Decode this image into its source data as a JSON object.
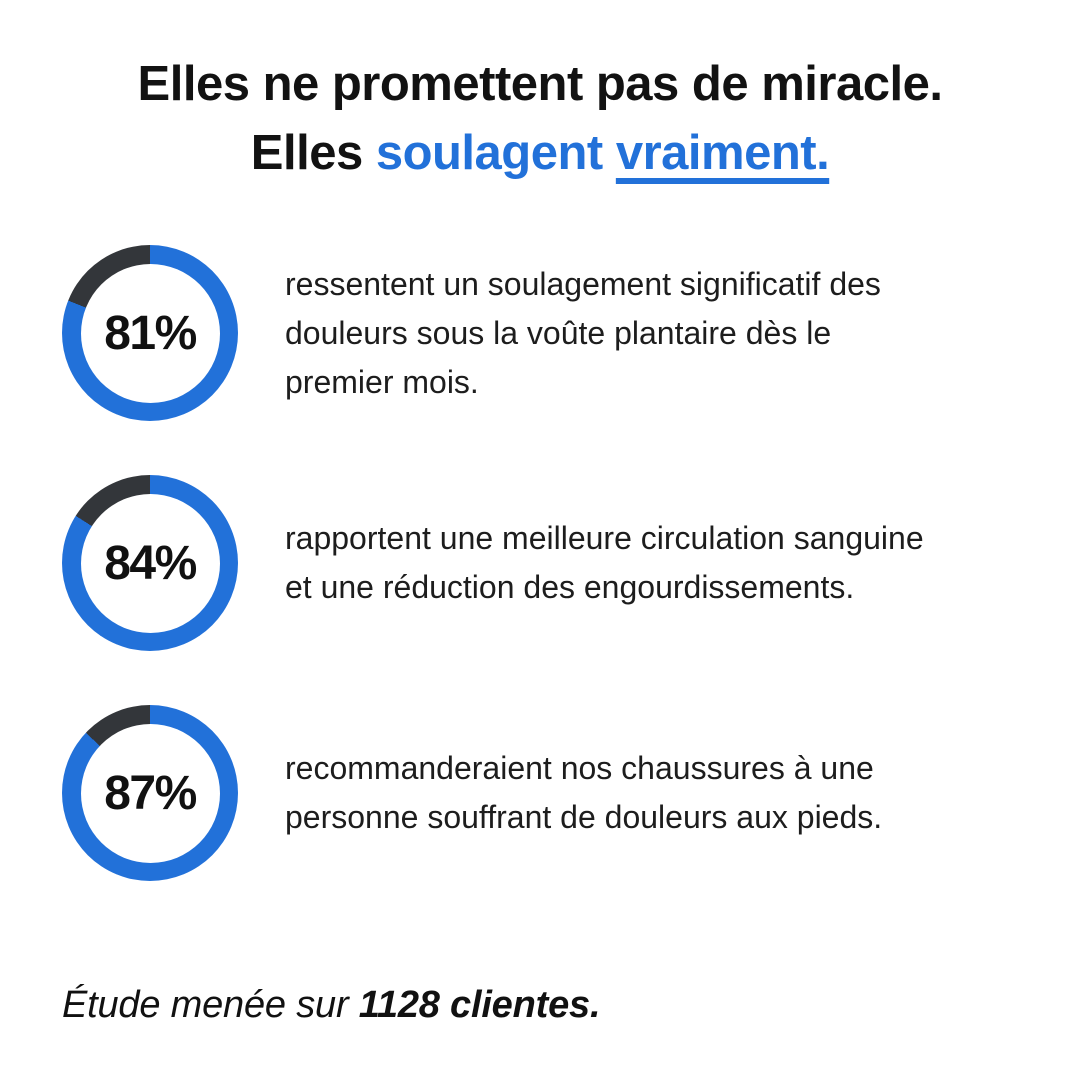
{
  "colors": {
    "accent_blue": "#2271D9",
    "ring_dark": "#33363A",
    "text_black": "#121212"
  },
  "headline": {
    "line1": "Elles ne promettent pas de miracle.",
    "line2_prefix": "Elles ",
    "line2_highlight": "soulagent ",
    "line2_underlined": "vraiment."
  },
  "stats": [
    {
      "percent": 81,
      "label": "81%",
      "description_lines": [
        "ressentent un soulagement significatif des",
        "douleurs sous la voûte plantaire dès le",
        "premier mois."
      ]
    },
    {
      "percent": 84,
      "label": "84%",
      "description_lines": [
        "rapportent une meilleure circulation sanguine",
        "et une réduction des engourdissements."
      ]
    },
    {
      "percent": 87,
      "label": "87%",
      "description_lines": [
        "recommanderaient nos chaussures à une",
        "personne souffrant de douleurs aux pieds."
      ]
    }
  ],
  "footer": {
    "prefix": "Étude menée sur ",
    "emphasis": "1128 clientes."
  },
  "chart_data": {
    "type": "pie",
    "subtype": "donut-progress-rings",
    "labels": [
      "81%",
      "84%",
      "87%"
    ],
    "values": [
      81,
      84,
      87
    ],
    "value_unit": "percent",
    "descriptions": [
      "ressentent un soulagement significatif des douleurs sous la voûte plantaire dès le premier mois.",
      "rapportent une meilleure circulation sanguine et une réduction des engourdissements.",
      "recommanderaient nos chaussures à une personne souffrant de douleurs aux pieds."
    ],
    "title": "Elles ne promettent pas de miracle. Elles soulagent vraiment.",
    "footnote": "Étude menée sur 1128 clientes.",
    "colors": {
      "filled": "#2271D9",
      "remainder": "#33363A"
    },
    "ring_start": "top",
    "ring_direction": "clockwise"
  }
}
